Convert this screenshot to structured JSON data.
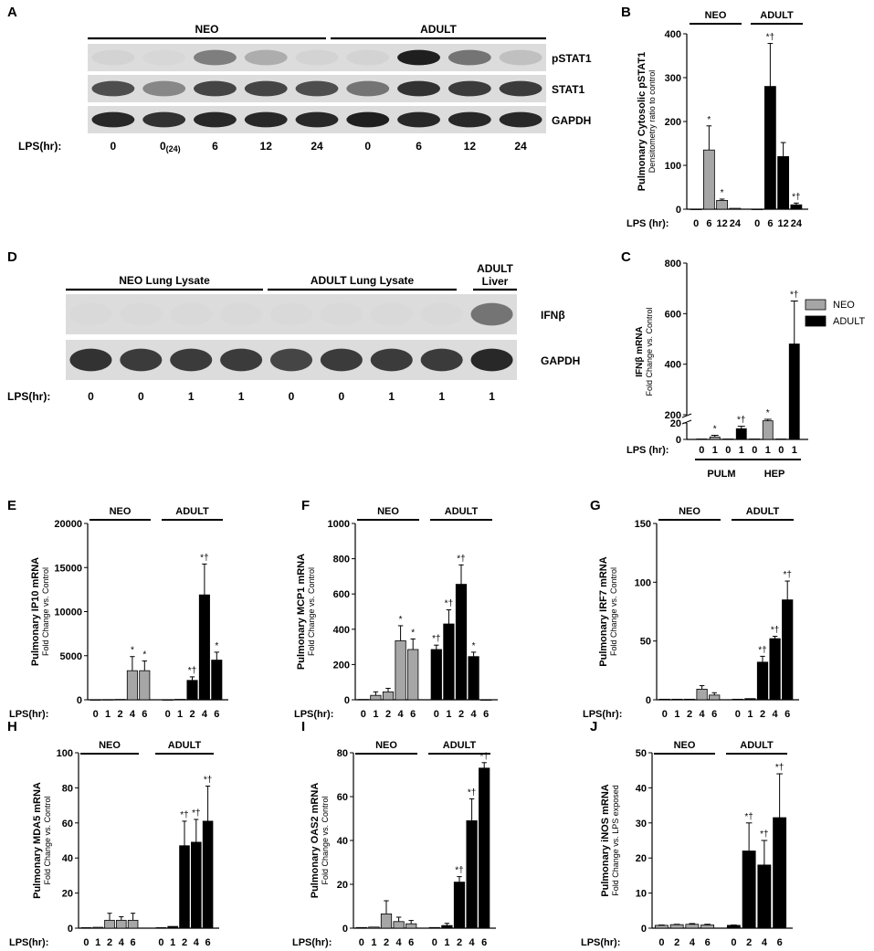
{
  "colors": {
    "neo": "#a6a6a6",
    "adult": "#000000",
    "axis": "#000000"
  },
  "lps_label": "LPS (hr):",
  "lps_label_short": "LPS(hr):",
  "blot_A": {
    "letter": "A",
    "groups": [
      "NEO",
      "ADULT"
    ],
    "rows": [
      "pSTAT1",
      "STAT1",
      "GAPDH"
    ],
    "lps_values": [
      "0",
      "0",
      "6",
      "12",
      "24",
      "0",
      "6",
      "12",
      "24"
    ],
    "lps_sub": "(24)",
    "intensity": {
      "pSTAT1": [
        0.05,
        0.03,
        0.5,
        0.25,
        0.05,
        0.05,
        1.0,
        0.55,
        0.15
      ],
      "STAT1": [
        0.75,
        0.45,
        0.8,
        0.8,
        0.75,
        0.55,
        0.9,
        0.85,
        0.85
      ],
      "GAPDH": [
        0.95,
        0.9,
        0.95,
        0.95,
        0.95,
        1.0,
        0.95,
        0.95,
        0.95
      ]
    }
  },
  "blot_D": {
    "letter": "D",
    "groups": [
      "NEO Lung Lysate",
      "ADULT Lung Lysate",
      "ADULT Liver"
    ],
    "rows": [
      "IFNβ",
      "GAPDH"
    ],
    "lps_values": [
      "0",
      "0",
      "1",
      "1",
      "0",
      "0",
      "1",
      "1",
      "1"
    ],
    "intensity": {
      "IFNβ": [
        0.02,
        0.02,
        0.02,
        0.02,
        0.02,
        0.02,
        0.02,
        0.02,
        0.55
      ],
      "GAPDH": [
        0.9,
        0.85,
        0.85,
        0.85,
        0.8,
        0.85,
        0.85,
        0.85,
        0.95
      ]
    }
  },
  "chart_data": [
    {
      "panel": "B",
      "type": "bar",
      "ylabel": "Pulmonary Cytosolic pSTAT1",
      "ylabel2": "Densitometry ratio to control",
      "ylim": [
        0,
        400
      ],
      "yticks": [
        0,
        100,
        200,
        300,
        400
      ],
      "groups": [
        "NEO",
        "ADULT"
      ],
      "series": [
        {
          "name": "NEO",
          "x": [
            "0",
            "6",
            "12",
            "24"
          ],
          "values": [
            0,
            135,
            20,
            2
          ],
          "errors": [
            0,
            55,
            3,
            0
          ],
          "marks": [
            "",
            "*",
            "*",
            ""
          ]
        },
        {
          "name": "ADULT",
          "x": [
            "0",
            "6",
            "12",
            "24"
          ],
          "values": [
            0,
            280,
            120,
            10
          ],
          "errors": [
            0,
            98,
            32,
            4
          ],
          "marks": [
            "",
            "*†",
            "",
            "*†"
          ]
        }
      ]
    },
    {
      "panel": "C",
      "type": "bar",
      "ylabel": "IFNβ mRNA",
      "ylabel2": "Fold Change vs. Control",
      "yticks_upper": [
        200,
        400,
        600,
        800
      ],
      "yticks_lower": [
        0,
        10,
        20
      ],
      "groups": [
        "PULM",
        "HEP"
      ],
      "legend": [
        "NEO",
        "ADULT"
      ],
      "x": [
        "0",
        "1",
        "0",
        "1",
        "0",
        "1",
        "0",
        "1"
      ],
      "series_index": [
        0,
        0,
        1,
        1,
        0,
        0,
        1,
        1
      ],
      "values": [
        0.5,
        3,
        0.5,
        13,
        0.5,
        105,
        0.5,
        480
      ],
      "errors": [
        0,
        2,
        0,
        3,
        0,
        60,
        0,
        170
      ],
      "marks": [
        "",
        "*",
        "",
        "*†",
        "",
        "*",
        "",
        "*†"
      ]
    },
    {
      "panel": "E",
      "type": "bar",
      "ylabel": "Pulmonary IP10 mRNA",
      "ylabel2": "Fold Change vs. Control",
      "ylim": [
        0,
        20000
      ],
      "yticks": [
        0,
        5000,
        10000,
        15000,
        20000
      ],
      "groups": [
        "NEO",
        "ADULT"
      ],
      "series": [
        {
          "name": "NEO",
          "x": [
            "0",
            "1",
            "2",
            "4",
            "6"
          ],
          "values": [
            5,
            20,
            40,
            3300,
            3300
          ],
          "errors": [
            0,
            0,
            0,
            1600,
            1100
          ],
          "marks": [
            "",
            "",
            "",
            "*",
            "*"
          ]
        },
        {
          "name": "ADULT",
          "x": [
            "0",
            "1",
            "2",
            "4",
            "6"
          ],
          "values": [
            5,
            50,
            2200,
            11900,
            4500
          ],
          "errors": [
            0,
            0,
            400,
            3500,
            900
          ],
          "marks": [
            "",
            "",
            "*†",
            "*†",
            "*"
          ]
        }
      ]
    },
    {
      "panel": "F",
      "type": "bar",
      "ylabel": "Pulmonary MCP1 mRNA",
      "ylabel2": "Fold Change vs. Control",
      "ylim": [
        0,
        1000
      ],
      "yticks": [
        0,
        200,
        400,
        600,
        800,
        1000
      ],
      "groups": [
        "NEO",
        "ADULT"
      ],
      "series": [
        {
          "name": "NEO",
          "x": [
            "0",
            "1",
            "2",
            "4",
            "6"
          ],
          "values": [
            2,
            25,
            45,
            335,
            285
          ],
          "errors": [
            0,
            20,
            20,
            85,
            60
          ],
          "marks": [
            "",
            "",
            "",
            "*",
            "*"
          ]
        },
        {
          "name": "ADULT",
          "x": [
            "0",
            "1",
            "2",
            "4",
            "6"
          ],
          "values": [
            285,
            430,
            655,
            245,
            0
          ],
          "errors": [
            25,
            80,
            110,
            25,
            0
          ],
          "marks": [
            "*†",
            "*†",
            "*†",
            "*",
            ""
          ]
        }
      ]
    },
    {
      "panel": "G",
      "type": "bar",
      "ylabel": "Pulmonary IRF7 mRNA",
      "ylabel2": "Fold Change vs. Control",
      "ylim": [
        0,
        150
      ],
      "yticks": [
        0,
        50,
        100,
        150
      ],
      "groups": [
        "NEO",
        "ADULT"
      ],
      "series": [
        {
          "name": "NEO",
          "x": [
            "0",
            "1",
            "2",
            "4",
            "6"
          ],
          "values": [
            0.5,
            0.5,
            0.5,
            9,
            4
          ],
          "errors": [
            0,
            0,
            0,
            3,
            2
          ],
          "marks": [
            "",
            "",
            "",
            "",
            ""
          ]
        },
        {
          "name": "ADULT",
          "x": [
            "0",
            "1",
            "2",
            "4",
            "6"
          ],
          "values": [
            0.5,
            1,
            32,
            52,
            85
          ],
          "errors": [
            0,
            0,
            5,
            2,
            16
          ],
          "marks": [
            "",
            "",
            "*†",
            "*†",
            "*†"
          ]
        }
      ]
    },
    {
      "panel": "H",
      "type": "bar",
      "ylabel": "Pulmonary MDA5 mRNA",
      "ylabel2": "Fold Change vs. Control",
      "ylim": [
        0,
        100
      ],
      "yticks": [
        0,
        20,
        40,
        60,
        80,
        100
      ],
      "groups": [
        "NEO",
        "ADULT"
      ],
      "series": [
        {
          "name": "NEO",
          "x": [
            "0",
            "1",
            "2",
            "4",
            "6"
          ],
          "values": [
            0.3,
            0.5,
            4.5,
            4.5,
            4.5
          ],
          "errors": [
            0,
            0,
            4,
            2,
            4
          ],
          "marks": [
            "",
            "",
            "",
            "",
            ""
          ]
        },
        {
          "name": "ADULT",
          "x": [
            "0",
            "1",
            "2",
            "4",
            "6"
          ],
          "values": [
            0.3,
            1,
            47,
            49,
            61
          ],
          "errors": [
            0,
            0,
            14,
            13,
            20
          ],
          "marks": [
            "",
            "",
            "*†",
            "*†",
            "*†"
          ]
        }
      ]
    },
    {
      "panel": "I",
      "type": "bar",
      "ylabel": "Pulmonary OAS2 mRNA",
      "ylabel2": "Fold Change vs. Control",
      "ylim": [
        0,
        80
      ],
      "yticks": [
        0,
        20,
        40,
        60,
        80
      ],
      "groups": [
        "NEO",
        "ADULT"
      ],
      "series": [
        {
          "name": "NEO",
          "x": [
            "0",
            "1",
            "2",
            "4",
            "6"
          ],
          "values": [
            0.3,
            0.5,
            6.5,
            3,
            2
          ],
          "errors": [
            0,
            0,
            6,
            2,
            1.5
          ],
          "marks": [
            "",
            "",
            "",
            "",
            ""
          ]
        },
        {
          "name": "ADULT",
          "x": [
            "0",
            "1",
            "2",
            "4",
            "6"
          ],
          "values": [
            0.3,
            1.2,
            21,
            49,
            73
          ],
          "errors": [
            0,
            1,
            2.5,
            10,
            2.5
          ],
          "marks": [
            "",
            "",
            "*†",
            "*†",
            "*†"
          ]
        }
      ]
    },
    {
      "panel": "J",
      "type": "bar",
      "ylabel": "Pulmonary iNOS mRNA",
      "ylabel2": "Fold Change vs. LPS exposed",
      "ylim": [
        0,
        50
      ],
      "yticks": [
        0,
        10,
        20,
        30,
        40,
        50
      ],
      "groups": [
        "NEO",
        "ADULT"
      ],
      "series": [
        {
          "name": "NEO",
          "x": [
            "0",
            "2",
            "4",
            "6"
          ],
          "values": [
            0.8,
            1,
            1.1,
            0.9
          ],
          "errors": [
            0.1,
            0.1,
            0.2,
            0.2
          ],
          "marks": [
            "",
            "",
            "",
            ""
          ]
        },
        {
          "name": "ADULT",
          "x": [
            "0",
            "2",
            "4",
            "6"
          ],
          "values": [
            0.8,
            22,
            18,
            31.5
          ],
          "errors": [
            0.1,
            8,
            7,
            12.5
          ],
          "marks": [
            "",
            "*†",
            "*†",
            "*†"
          ]
        }
      ]
    }
  ]
}
